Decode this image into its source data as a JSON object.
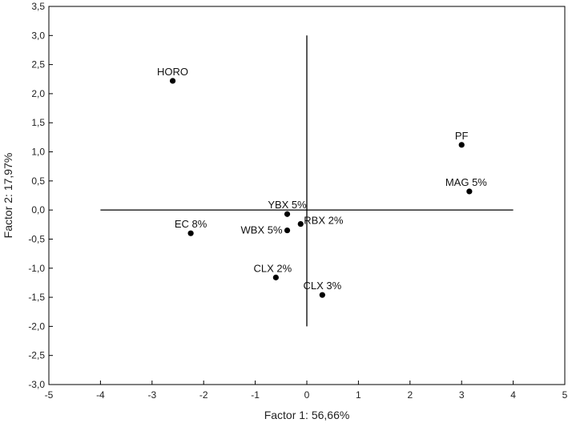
{
  "chart_data": {
    "type": "scatter",
    "title": "",
    "xlabel": "Factor 1: 56,66%",
    "ylabel": "Factor 2: 17,97%",
    "xlim": [
      -5,
      5
    ],
    "ylim": [
      -3.0,
      3.5
    ],
    "x_ticks": [
      -5,
      -4,
      -3,
      -2,
      -1,
      0,
      1,
      2,
      3,
      4,
      5
    ],
    "x_tick_labels": [
      "-5",
      "-4",
      "-3",
      "-2",
      "-1",
      "0",
      "1",
      "2",
      "3",
      "4",
      "5"
    ],
    "y_ticks": [
      -3.0,
      -2.5,
      -2.0,
      -1.5,
      -1.0,
      -0.5,
      0.0,
      0.5,
      1.0,
      1.5,
      2.0,
      2.5,
      3.0,
      3.5
    ],
    "y_tick_labels": [
      "-3,0",
      "-2,5",
      "-2,0",
      "-1,5",
      "-1,0",
      "-0,5",
      "0,0",
      "0,5",
      "1,0",
      "1,5",
      "2,0",
      "2,5",
      "3,0",
      "3,5"
    ],
    "grid": false,
    "reference_lines": {
      "horizontal": {
        "y": 0,
        "x_from": -4,
        "x_to": 4
      },
      "vertical": {
        "x": 0,
        "y_from": -2,
        "y_to": 3
      }
    },
    "points": [
      {
        "label": "HORO",
        "x": -2.6,
        "y": 2.22,
        "label_pos": "above"
      },
      {
        "label": "PF",
        "x": 3.0,
        "y": 1.12,
        "label_pos": "above"
      },
      {
        "label": "MAG 5%",
        "x": 3.15,
        "y": 0.32,
        "label_pos": "above-left"
      },
      {
        "label": "YBX 5%",
        "x": -0.38,
        "y": -0.07,
        "label_pos": "above"
      },
      {
        "label": "RBX 2%",
        "x": -0.12,
        "y": -0.24,
        "label_pos": "right"
      },
      {
        "label": "WBX 5%",
        "x": -0.38,
        "y": -0.35,
        "label_pos": "left"
      },
      {
        "label": "EC 8%",
        "x": -2.25,
        "y": -0.4,
        "label_pos": "above"
      },
      {
        "label": "CLX 2%",
        "x": -0.6,
        "y": -1.16,
        "label_pos": "above-left"
      },
      {
        "label": "CLX 3%",
        "x": 0.3,
        "y": -1.46,
        "label_pos": "above"
      }
    ],
    "marker_color": "#000000",
    "line_color": "#000000"
  }
}
